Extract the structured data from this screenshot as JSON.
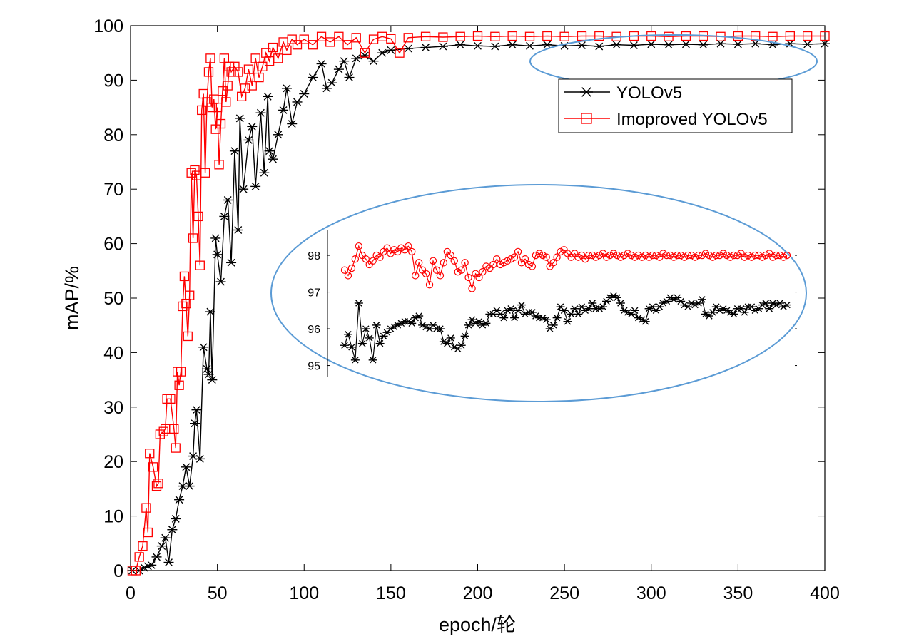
{
  "chart_data": [
    {
      "type": "line",
      "xlabel": "epoch/轮",
      "ylabel": "mAP/%",
      "xlim": [
        0,
        400
      ],
      "ylim": [
        0,
        100
      ],
      "xticks": [
        0,
        50,
        100,
        150,
        200,
        250,
        300,
        350,
        400
      ],
      "yticks": [
        0,
        10,
        20,
        30,
        40,
        50,
        60,
        70,
        80,
        90,
        100
      ],
      "grid": false,
      "legend_position": "top-right",
      "series": [
        {
          "name": "YOLOv5",
          "color": "#000000",
          "marker": "asterisk",
          "points": [
            [
              1,
              0
            ],
            [
              5,
              0
            ],
            [
              8,
              0.5
            ],
            [
              10,
              0.8
            ],
            [
              12,
              1
            ],
            [
              15,
              2.5
            ],
            [
              18,
              4.5
            ],
            [
              20,
              6
            ],
            [
              22,
              1.5
            ],
            [
              24,
              7.5
            ],
            [
              26,
              9.5
            ],
            [
              28,
              13
            ],
            [
              30,
              15.5
            ],
            [
              32,
              19
            ],
            [
              34,
              15.5
            ],
            [
              36,
              21
            ],
            [
              37,
              27
            ],
            [
              38,
              29.5
            ],
            [
              40,
              20.5
            ],
            [
              42,
              41
            ],
            [
              44,
              37
            ],
            [
              45,
              36
            ],
            [
              46,
              47.5
            ],
            [
              47,
              35
            ],
            [
              49,
              61
            ],
            [
              50,
              58
            ],
            [
              52,
              53
            ],
            [
              54,
              65
            ],
            [
              56,
              68
            ],
            [
              58,
              56.5
            ],
            [
              60,
              77
            ],
            [
              62,
              62.5
            ],
            [
              63,
              83
            ],
            [
              65,
              70
            ],
            [
              68,
              79
            ],
            [
              70,
              81.5
            ],
            [
              72,
              70.5
            ],
            [
              75,
              84
            ],
            [
              77,
              73
            ],
            [
              79,
              87
            ],
            [
              80,
              77
            ],
            [
              82,
              75.5
            ],
            [
              85,
              80
            ],
            [
              88,
              84.5
            ],
            [
              90,
              88.5
            ],
            [
              93,
              82
            ],
            [
              96,
              86
            ],
            [
              100,
              87.5
            ],
            [
              105,
              90.5
            ],
            [
              110,
              93
            ],
            [
              113,
              88.5
            ],
            [
              116,
              89.5
            ],
            [
              120,
              92
            ],
            [
              123,
              93.5
            ],
            [
              126,
              90.5
            ],
            [
              130,
              94
            ],
            [
              135,
              94.5
            ],
            [
              140,
              93.5
            ],
            [
              145,
              95
            ],
            [
              150,
              95.5
            ],
            [
              160,
              95.8
            ],
            [
              170,
              96
            ],
            [
              180,
              96.2
            ],
            [
              190,
              96.5
            ],
            [
              200,
              96.3
            ],
            [
              210,
              96.2
            ],
            [
              220,
              96.5
            ],
            [
              230,
              96.3
            ],
            [
              240,
              96.5
            ],
            [
              250,
              96.3
            ],
            [
              260,
              96.4
            ],
            [
              270,
              96.2
            ],
            [
              280,
              96.5
            ],
            [
              290,
              96.4
            ],
            [
              300,
              96.6
            ],
            [
              310,
              96.5
            ],
            [
              320,
              96.6
            ],
            [
              330,
              96.5
            ],
            [
              340,
              96.7
            ],
            [
              350,
              96.6
            ],
            [
              360,
              96.7
            ],
            [
              370,
              96.5
            ],
            [
              380,
              96.7
            ],
            [
              390,
              96.6
            ],
            [
              400,
              96.7
            ]
          ]
        },
        {
          "name": "Imoproved YOLOv5",
          "color": "#ff0000",
          "marker": "square",
          "points": [
            [
              1,
              0
            ],
            [
              3,
              0
            ],
            [
              5,
              2.5
            ],
            [
              7,
              4.5
            ],
            [
              9,
              11.5
            ],
            [
              10,
              7
            ],
            [
              11,
              21.5
            ],
            [
              13,
              19
            ],
            [
              15,
              15.5
            ],
            [
              16,
              16
            ],
            [
              17,
              25
            ],
            [
              19,
              25.5
            ],
            [
              20,
              26
            ],
            [
              21,
              31.5
            ],
            [
              23,
              31.5
            ],
            [
              25,
              26
            ],
            [
              26,
              22.5
            ],
            [
              27,
              36.5
            ],
            [
              28,
              34
            ],
            [
              29,
              36.5
            ],
            [
              30,
              48.5
            ],
            [
              31,
              54
            ],
            [
              32,
              49
            ],
            [
              33,
              43
            ],
            [
              34,
              50.5
            ],
            [
              35,
              73
            ],
            [
              36,
              61
            ],
            [
              37,
              73.5
            ],
            [
              38,
              72.5
            ],
            [
              39,
              65
            ],
            [
              40,
              56
            ],
            [
              41,
              84.5
            ],
            [
              42,
              87.5
            ],
            [
              43,
              73
            ],
            [
              44,
              86
            ],
            [
              45,
              91.5
            ],
            [
              46,
              94
            ],
            [
              47,
              85
            ],
            [
              48,
              86.5
            ],
            [
              49,
              81
            ],
            [
              50,
              85
            ],
            [
              51,
              74.5
            ],
            [
              52,
              82
            ],
            [
              53,
              88
            ],
            [
              54,
              94
            ],
            [
              55,
              86
            ],
            [
              56,
              89
            ],
            [
              57,
              92.5
            ],
            [
              58,
              91.5
            ],
            [
              60,
              92.5
            ],
            [
              62,
              91.5
            ],
            [
              64,
              87
            ],
            [
              66,
              88.5
            ],
            [
              68,
              92
            ],
            [
              70,
              89
            ],
            [
              72,
              94
            ],
            [
              74,
              90.5
            ],
            [
              76,
              92.5
            ],
            [
              78,
              95
            ],
            [
              80,
              93.5
            ],
            [
              82,
              96
            ],
            [
              85,
              94
            ],
            [
              88,
              97
            ],
            [
              90,
              95.5
            ],
            [
              93,
              97.5
            ],
            [
              96,
              96.5
            ],
            [
              100,
              97.5
            ],
            [
              105,
              96.5
            ],
            [
              110,
              98
            ],
            [
              115,
              97
            ],
            [
              120,
              98
            ],
            [
              125,
              96.5
            ],
            [
              130,
              97.8
            ],
            [
              135,
              95
            ],
            [
              140,
              97.5
            ],
            [
              145,
              98
            ],
            [
              150,
              97.6
            ],
            [
              155,
              95
            ],
            [
              160,
              97.8
            ],
            [
              170,
              98
            ],
            [
              180,
              97.9
            ],
            [
              190,
              98
            ],
            [
              200,
              98.1
            ],
            [
              210,
              98
            ],
            [
              220,
              98.1
            ],
            [
              230,
              98
            ],
            [
              240,
              98.1
            ],
            [
              250,
              98
            ],
            [
              260,
              98.1
            ],
            [
              270,
              98.1
            ],
            [
              280,
              98
            ],
            [
              290,
              98.1
            ],
            [
              300,
              98.1
            ],
            [
              310,
              98
            ],
            [
              320,
              98.1
            ],
            [
              330,
              98.1
            ],
            [
              340,
              98
            ],
            [
              350,
              98.1
            ],
            [
              360,
              98.1
            ],
            [
              370,
              98
            ],
            [
              380,
              98.1
            ],
            [
              390,
              98.1
            ],
            [
              400,
              98.1
            ]
          ]
        }
      ]
    },
    {
      "type": "line",
      "yticks": [
        95,
        96,
        97,
        98
      ],
      "ylim": [
        94.7,
        98.7
      ],
      "xlim": [
        0,
        126
      ],
      "series": [
        {
          "name": "YOLOv5",
          "color": "#000000",
          "marker": "asterisk",
          "values": [
            95.55,
            95.85,
            95.5,
            95.15,
            96.7,
            95.6,
            96.0,
            95.75,
            95.15,
            96.1,
            95.6,
            95.8,
            95.9,
            96.0,
            96.05,
            96.1,
            96.15,
            96.2,
            96.2,
            96.15,
            96.3,
            96.35,
            96.1,
            96.05,
            96.0,
            96.1,
            96.0,
            96.0,
            95.65,
            95.6,
            95.75,
            95.5,
            95.45,
            95.55,
            95.8,
            96.1,
            96.25,
            96.15,
            96.2,
            96.1,
            96.15,
            96.4,
            96.4,
            96.5,
            96.4,
            96.3,
            96.5,
            96.55,
            96.3,
            96.5,
            96.65,
            96.4,
            96.45,
            96.45,
            96.35,
            96.3,
            96.3,
            96.25,
            96.0,
            96.1,
            96.3,
            96.6,
            96.5,
            96.2,
            96.4,
            96.55,
            96.4,
            96.6,
            96.5,
            96.55,
            96.7,
            96.55,
            96.55,
            96.6,
            96.75,
            96.85,
            96.9,
            96.85,
            96.7,
            96.5,
            96.45,
            96.4,
            96.5,
            96.3,
            96.25,
            96.2,
            96.55,
            96.6,
            96.5,
            96.6,
            96.7,
            96.75,
            96.85,
            96.8,
            96.85,
            96.75,
            96.65,
            96.6,
            96.7,
            96.65,
            96.7,
            96.8,
            96.4,
            96.35,
            96.45,
            96.6,
            96.5,
            96.55,
            96.5,
            96.45,
            96.4,
            96.55,
            96.55,
            96.45,
            96.6,
            96.6,
            96.5,
            96.55,
            96.65,
            96.7,
            96.55,
            96.7,
            96.65,
            96.7,
            96.6,
            96.65
          ]
        },
        {
          "name": "Imoproved YOLOv5",
          "color": "#ff0000",
          "marker": "circle",
          "values": [
            97.6,
            97.45,
            97.65,
            97.9,
            98.25,
            98.0,
            97.9,
            97.75,
            97.85,
            98.0,
            97.95,
            98.1,
            98.2,
            98.05,
            98.15,
            98.1,
            98.2,
            98.15,
            98.25,
            98.1,
            97.45,
            97.8,
            97.6,
            97.5,
            97.2,
            97.85,
            97.6,
            97.45,
            97.8,
            98.1,
            98.0,
            97.85,
            97.55,
            97.6,
            97.8,
            97.4,
            97.1,
            97.5,
            97.4,
            97.55,
            97.7,
            97.65,
            97.75,
            97.9,
            97.75,
            97.8,
            97.85,
            97.9,
            97.95,
            98.1,
            97.8,
            97.9,
            97.75,
            97.7,
            98.0,
            98.05,
            98.0,
            97.95,
            97.7,
            97.8,
            97.95,
            98.1,
            98.15,
            98.05,
            97.95,
            98.05,
            97.95,
            98.0,
            97.9,
            98.0,
            98.0,
            97.95,
            98.0,
            98.05,
            97.95,
            98.0,
            98.05,
            98.0,
            97.95,
            98.0,
            98.05,
            98.0,
            97.95,
            98.0,
            97.95,
            98.0,
            97.95,
            98.0,
            98.0,
            97.95,
            98.05,
            98.0,
            98.0,
            97.95,
            98.0,
            98.0,
            97.95,
            98.0,
            98.0,
            97.95,
            98.0,
            98.0,
            98.05,
            98.0,
            97.95,
            98.0,
            98.0,
            98.05,
            98.0,
            97.95,
            98.0,
            98.0,
            98.05,
            97.95,
            98.0,
            97.95,
            98.0,
            98.0,
            97.95,
            98.0,
            98.05,
            97.95,
            98.0,
            98.0,
            97.95,
            98.0
          ]
        }
      ]
    }
  ],
  "colors": {
    "highlight_ellipse": "#5b9bd5",
    "axis": "#000000"
  }
}
